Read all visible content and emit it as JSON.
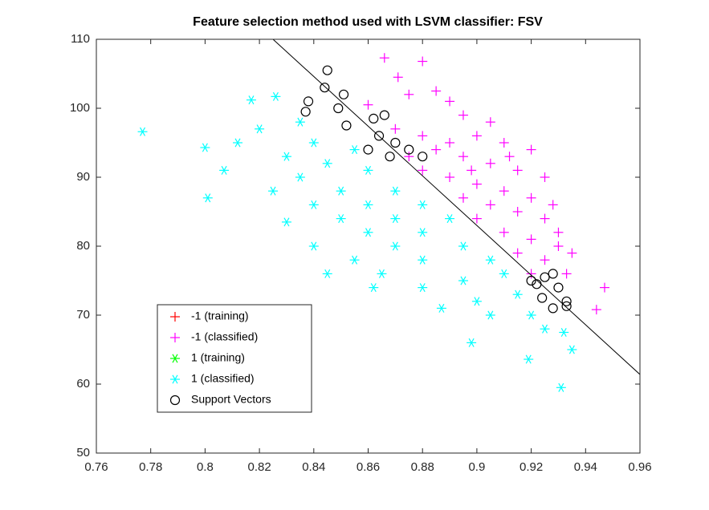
{
  "chart_data": {
    "type": "scatter",
    "title": "Feature selection method used with LSVM classifier: FSV",
    "xlim": [
      0.76,
      0.96
    ],
    "ylim": [
      50,
      110
    ],
    "xticks": [
      0.76,
      0.78,
      0.8,
      0.82,
      0.84,
      0.86,
      0.88,
      0.9,
      0.92,
      0.94,
      0.96
    ],
    "yticks": [
      50,
      60,
      70,
      80,
      90,
      100,
      110
    ],
    "grid": false,
    "legend": "lower-left",
    "boundary": {
      "color": "#000000",
      "x": [
        0.825,
        0.96
      ],
      "y": [
        110,
        61.4
      ]
    },
    "series": [
      {
        "name": "-1 (training)",
        "color": "#ff0000",
        "marker": "+",
        "x": [],
        "values": []
      },
      {
        "name": "-1 (classified)",
        "color": "#ff00ff",
        "marker": "+",
        "x": [
          0.866,
          0.88,
          0.871,
          0.885,
          0.875,
          0.89,
          0.86,
          0.895,
          0.905,
          0.87,
          0.88,
          0.9,
          0.91,
          0.92,
          0.885,
          0.895,
          0.905,
          0.915,
          0.925,
          0.88,
          0.89,
          0.9,
          0.91,
          0.92,
          0.895,
          0.905,
          0.915,
          0.925,
          0.9,
          0.91,
          0.92,
          0.93,
          0.915,
          0.925,
          0.933,
          0.92,
          0.947,
          0.944,
          0.93,
          0.89,
          0.875,
          0.912,
          0.898,
          0.935,
          0.928
        ],
        "values": [
          107.3,
          106.8,
          104.5,
          102.5,
          102,
          101,
          100.5,
          99,
          98,
          97,
          96,
          96,
          95,
          94,
          94,
          93,
          92,
          91,
          90,
          91,
          90,
          89,
          88,
          87,
          87,
          86,
          85,
          84,
          84,
          82,
          81,
          80,
          79,
          78,
          76,
          76,
          74,
          70.8,
          82,
          95,
          93,
          93,
          91,
          79,
          86
        ]
      },
      {
        "name": "1 (training)",
        "color": "#00ff00",
        "marker": "*",
        "x": [],
        "values": []
      },
      {
        "name": "1 (classified)",
        "color": "#00ffff",
        "marker": "*",
        "x": [
          0.777,
          0.8,
          0.801,
          0.807,
          0.812,
          0.817,
          0.826,
          0.82,
          0.83,
          0.835,
          0.84,
          0.845,
          0.85,
          0.855,
          0.86,
          0.84,
          0.85,
          0.86,
          0.87,
          0.86,
          0.87,
          0.88,
          0.84,
          0.855,
          0.87,
          0.88,
          0.89,
          0.865,
          0.88,
          0.895,
          0.905,
          0.88,
          0.895,
          0.91,
          0.9,
          0.915,
          0.905,
          0.92,
          0.898,
          0.919,
          0.931,
          0.935,
          0.932,
          0.83,
          0.845,
          0.835,
          0.825,
          0.862,
          0.887,
          0.925
        ],
        "values": [
          96.6,
          94.3,
          87,
          91,
          95,
          101.2,
          101.7,
          97,
          93,
          90,
          95,
          92,
          88,
          94,
          91,
          86,
          84,
          86,
          88,
          82,
          84,
          86,
          80,
          78,
          80,
          82,
          84,
          76,
          78,
          80,
          78,
          74,
          75,
          76,
          72,
          73,
          70,
          70,
          66,
          63.6,
          59.5,
          65,
          67.5,
          83.5,
          76,
          98,
          88,
          74,
          71,
          68
        ]
      },
      {
        "name": "Support Vectors",
        "color": "#000000",
        "marker": "o",
        "x": [
          0.845,
          0.844,
          0.838,
          0.837,
          0.849,
          0.851,
          0.852,
          0.862,
          0.866,
          0.864,
          0.87,
          0.875,
          0.88,
          0.92,
          0.925,
          0.928,
          0.922,
          0.924,
          0.928,
          0.933,
          0.933,
          0.93,
          0.86,
          0.868
        ],
        "values": [
          105.5,
          103,
          101,
          99.5,
          100,
          102,
          97.5,
          98.5,
          99,
          96,
          95,
          94,
          93,
          75,
          75.5,
          76,
          74.5,
          72.5,
          71,
          72,
          71.3,
          74,
          94,
          93
        ]
      }
    ]
  }
}
